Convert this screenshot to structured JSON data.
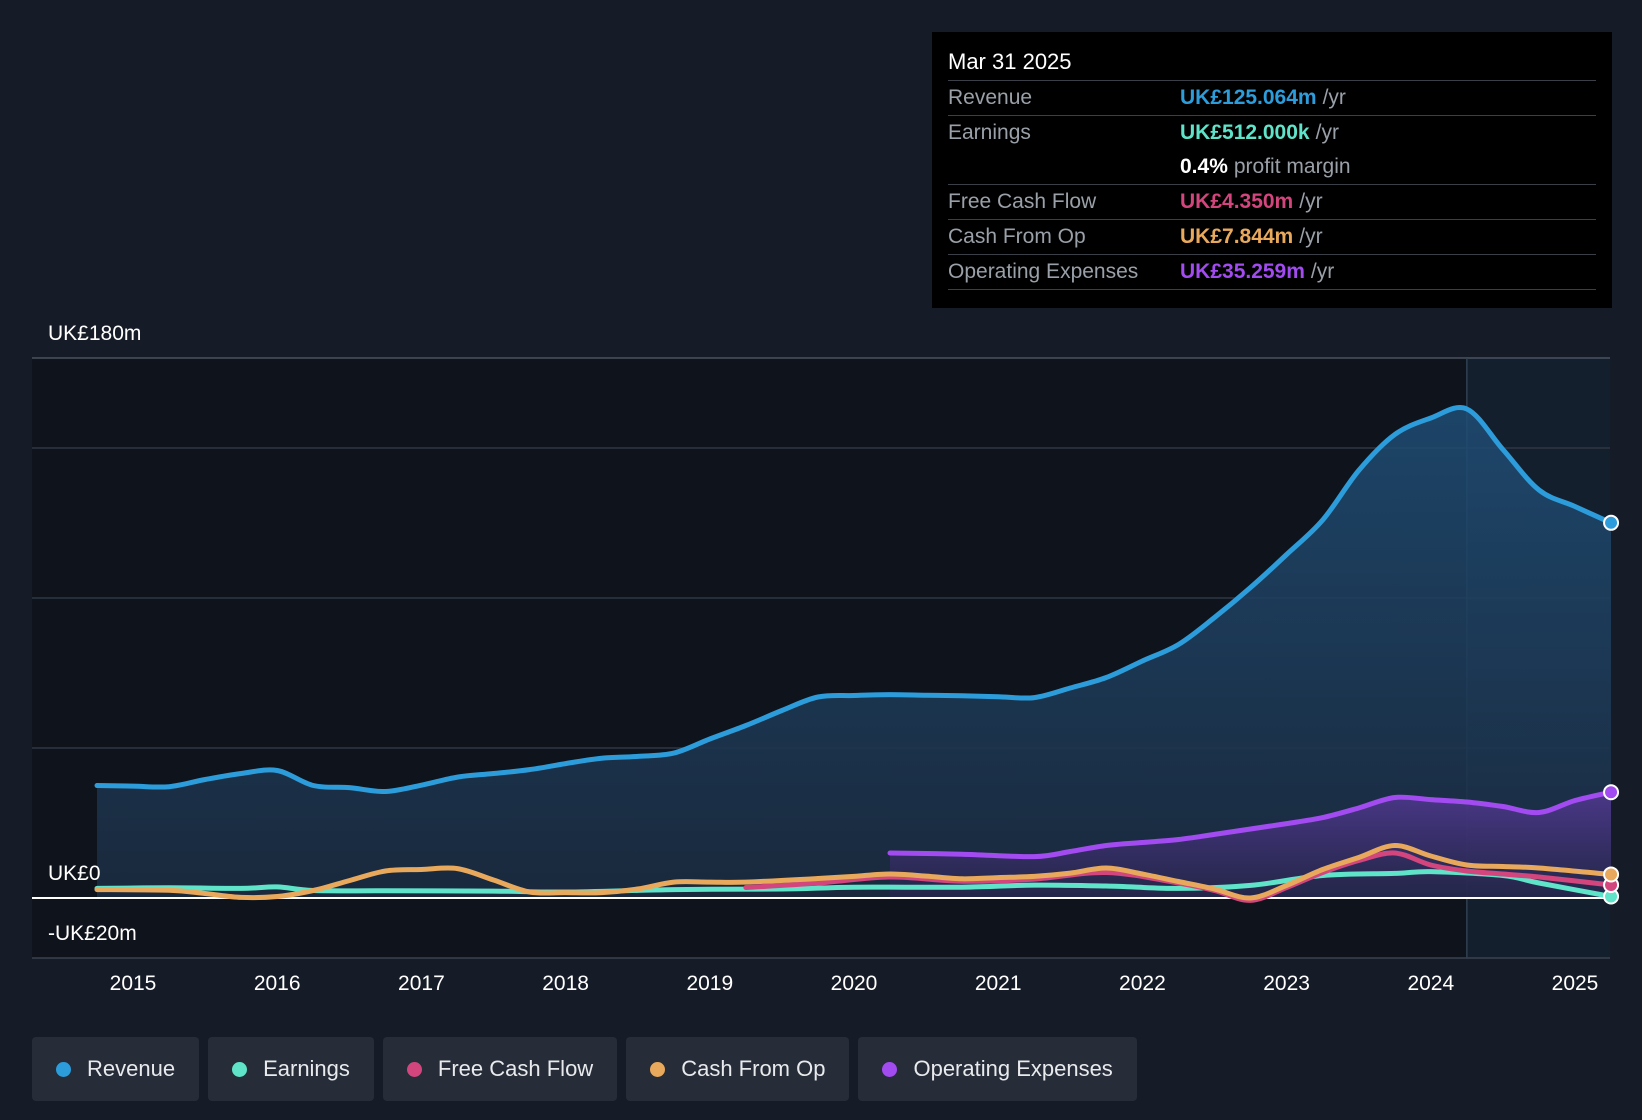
{
  "chart_data": {
    "type": "line",
    "y_axis_labels": [
      "UK£180m",
      "UK£0",
      "-UK£20m"
    ],
    "ylim": [
      -20,
      180
    ],
    "x_ticks": [
      "2015",
      "2016",
      "2017",
      "2018",
      "2019",
      "2020",
      "2021",
      "2022",
      "2023",
      "2024",
      "2025"
    ],
    "xlim": [
      2014.6,
      2025.25
    ],
    "forecast_start": 2024.25,
    "series": [
      {
        "key": "revenue",
        "name": "Revenue",
        "color": "#2d9cdb",
        "area": true,
        "points": [
          [
            2014.75,
            37.5
          ],
          [
            2015.0,
            37.3
          ],
          [
            2015.25,
            37.1
          ],
          [
            2015.5,
            39.5
          ],
          [
            2015.75,
            41.5
          ],
          [
            2016.0,
            42.5
          ],
          [
            2016.25,
            37.5
          ],
          [
            2016.5,
            36.8
          ],
          [
            2016.75,
            35.5
          ],
          [
            2017.0,
            37.6
          ],
          [
            2017.25,
            40.3
          ],
          [
            2017.5,
            41.5
          ],
          [
            2017.75,
            42.8
          ],
          [
            2018.0,
            44.8
          ],
          [
            2018.25,
            46.6
          ],
          [
            2018.5,
            47.2
          ],
          [
            2018.75,
            48.3
          ],
          [
            2019.0,
            53.0
          ],
          [
            2019.25,
            57.5
          ],
          [
            2019.5,
            62.5
          ],
          [
            2019.75,
            67.0
          ],
          [
            2020.0,
            67.5
          ],
          [
            2020.25,
            67.8
          ],
          [
            2020.5,
            67.6
          ],
          [
            2020.75,
            67.4
          ],
          [
            2021.0,
            67.1
          ],
          [
            2021.25,
            66.8
          ],
          [
            2021.5,
            70.0
          ],
          [
            2021.75,
            73.5
          ],
          [
            2022.0,
            79.0
          ],
          [
            2022.25,
            84.5
          ],
          [
            2022.5,
            93.5
          ],
          [
            2022.75,
            103.5
          ],
          [
            2023.0,
            114.5
          ],
          [
            2023.25,
            126.0
          ],
          [
            2023.5,
            142.5
          ],
          [
            2023.75,
            154.5
          ],
          [
            2024.0,
            160.0
          ],
          [
            2024.25,
            163.0
          ],
          [
            2024.5,
            149.5
          ],
          [
            2024.75,
            136.0
          ],
          [
            2025.0,
            130.5
          ],
          [
            2025.25,
            125.064
          ]
        ]
      },
      {
        "key": "earnings",
        "name": "Earnings",
        "color": "#5fe3c9",
        "area": false,
        "points": [
          [
            2014.75,
            3.2
          ],
          [
            2015.25,
            3.4
          ],
          [
            2015.75,
            3.2
          ],
          [
            2016.0,
            3.7
          ],
          [
            2016.25,
            2.5
          ],
          [
            2016.75,
            2.4
          ],
          [
            2017.5,
            2.3
          ],
          [
            2018.0,
            2.0
          ],
          [
            2018.75,
            2.8
          ],
          [
            2019.5,
            3.0
          ],
          [
            2020.0,
            3.6
          ],
          [
            2020.75,
            3.6
          ],
          [
            2021.25,
            4.3
          ],
          [
            2021.75,
            4.0
          ],
          [
            2022.25,
            3.2
          ],
          [
            2022.75,
            4.2
          ],
          [
            2023.25,
            7.5
          ],
          [
            2023.75,
            8.2
          ],
          [
            2024.0,
            8.8
          ],
          [
            2024.5,
            7.5
          ],
          [
            2024.75,
            5.0
          ],
          [
            2025.25,
            0.512
          ]
        ]
      },
      {
        "key": "fcf",
        "name": "Free Cash Flow",
        "color": "#d2457d",
        "area": false,
        "points": [
          [
            2019.25,
            3.5
          ],
          [
            2019.75,
            5.0
          ],
          [
            2020.25,
            7.0
          ],
          [
            2020.75,
            5.6
          ],
          [
            2021.25,
            6.3
          ],
          [
            2021.75,
            8.5
          ],
          [
            2022.25,
            5.0
          ],
          [
            2022.5,
            2.5
          ],
          [
            2022.75,
            -0.8
          ],
          [
            2023.0,
            3.5
          ],
          [
            2023.25,
            8.5
          ],
          [
            2023.5,
            12.5
          ],
          [
            2023.75,
            15.0
          ],
          [
            2024.0,
            11.0
          ],
          [
            2024.25,
            9.0
          ],
          [
            2024.5,
            8.0
          ],
          [
            2024.75,
            7.0
          ],
          [
            2025.25,
            4.35
          ]
        ]
      },
      {
        "key": "cfo",
        "name": "Cash From Op",
        "color": "#e8a95c",
        "area": false,
        "points": [
          [
            2014.75,
            2.8
          ],
          [
            2015.25,
            2.6
          ],
          [
            2015.5,
            1.5
          ],
          [
            2015.75,
            0.2
          ],
          [
            2016.0,
            0.5
          ],
          [
            2016.25,
            2.5
          ],
          [
            2016.5,
            5.8
          ],
          [
            2016.75,
            9.0
          ],
          [
            2017.0,
            9.5
          ],
          [
            2017.25,
            9.8
          ],
          [
            2017.5,
            6.0
          ],
          [
            2017.75,
            2.0
          ],
          [
            2018.0,
            1.8
          ],
          [
            2018.25,
            1.8
          ],
          [
            2018.5,
            3.0
          ],
          [
            2018.75,
            5.3
          ],
          [
            2019.0,
            5.3
          ],
          [
            2019.25,
            5.3
          ],
          [
            2019.75,
            6.5
          ],
          [
            2020.0,
            7.2
          ],
          [
            2020.25,
            8.0
          ],
          [
            2020.5,
            7.3
          ],
          [
            2020.75,
            6.4
          ],
          [
            2021.0,
            6.8
          ],
          [
            2021.25,
            7.2
          ],
          [
            2021.5,
            8.3
          ],
          [
            2021.75,
            10.0
          ],
          [
            2022.0,
            8.0
          ],
          [
            2022.25,
            5.5
          ],
          [
            2022.5,
            3.0
          ],
          [
            2022.75,
            0.0
          ],
          [
            2023.0,
            4.2
          ],
          [
            2023.25,
            9.5
          ],
          [
            2023.5,
            13.5
          ],
          [
            2023.75,
            17.5
          ],
          [
            2024.0,
            14.0
          ],
          [
            2024.25,
            11.0
          ],
          [
            2024.5,
            10.5
          ],
          [
            2024.75,
            10.0
          ],
          [
            2025.25,
            7.844
          ]
        ]
      },
      {
        "key": "opex",
        "name": "Operating Expenses",
        "color": "#a24bf0",
        "area": true,
        "points": [
          [
            2020.25,
            15.0
          ],
          [
            2020.75,
            14.6
          ],
          [
            2021.25,
            13.8
          ],
          [
            2021.5,
            15.5
          ],
          [
            2021.75,
            17.5
          ],
          [
            2022.0,
            18.5
          ],
          [
            2022.25,
            19.5
          ],
          [
            2022.5,
            21.2
          ],
          [
            2022.75,
            23.0
          ],
          [
            2023.0,
            24.8
          ],
          [
            2023.25,
            26.8
          ],
          [
            2023.5,
            30.0
          ],
          [
            2023.75,
            33.5
          ],
          [
            2024.0,
            32.8
          ],
          [
            2024.25,
            32.0
          ],
          [
            2024.5,
            30.5
          ],
          [
            2024.75,
            28.5
          ],
          [
            2025.0,
            32.5
          ],
          [
            2025.25,
            35.259
          ]
        ]
      }
    ]
  },
  "tooltip": {
    "date": "Mar 31 2025",
    "rows": [
      {
        "label": "Revenue",
        "value": "UK£125.064m",
        "unit": "/yr",
        "color": "#2d9cdb"
      },
      {
        "label": "Earnings",
        "value": "UK£512.000k",
        "unit": "/yr",
        "color": "#5fe3c9"
      },
      {
        "label": "",
        "value": "0.4%",
        "unit": "profit margin",
        "color": "#ffffff"
      },
      {
        "label": "Free Cash Flow",
        "value": "UK£4.350m",
        "unit": "/yr",
        "color": "#d2457d"
      },
      {
        "label": "Cash From Op",
        "value": "UK£7.844m",
        "unit": "/yr",
        "color": "#e8a95c"
      },
      {
        "label": "Operating Expenses",
        "value": "UK£35.259m",
        "unit": "/yr",
        "color": "#a24bf0"
      }
    ]
  },
  "legend": [
    {
      "label": "Revenue",
      "color": "#2d9cdb"
    },
    {
      "label": "Earnings",
      "color": "#5fe3c9"
    },
    {
      "label": "Free Cash Flow",
      "color": "#d2457d"
    },
    {
      "label": "Cash From Op",
      "color": "#e8a95c"
    },
    {
      "label": "Operating Expenses",
      "color": "#a24bf0"
    }
  ]
}
